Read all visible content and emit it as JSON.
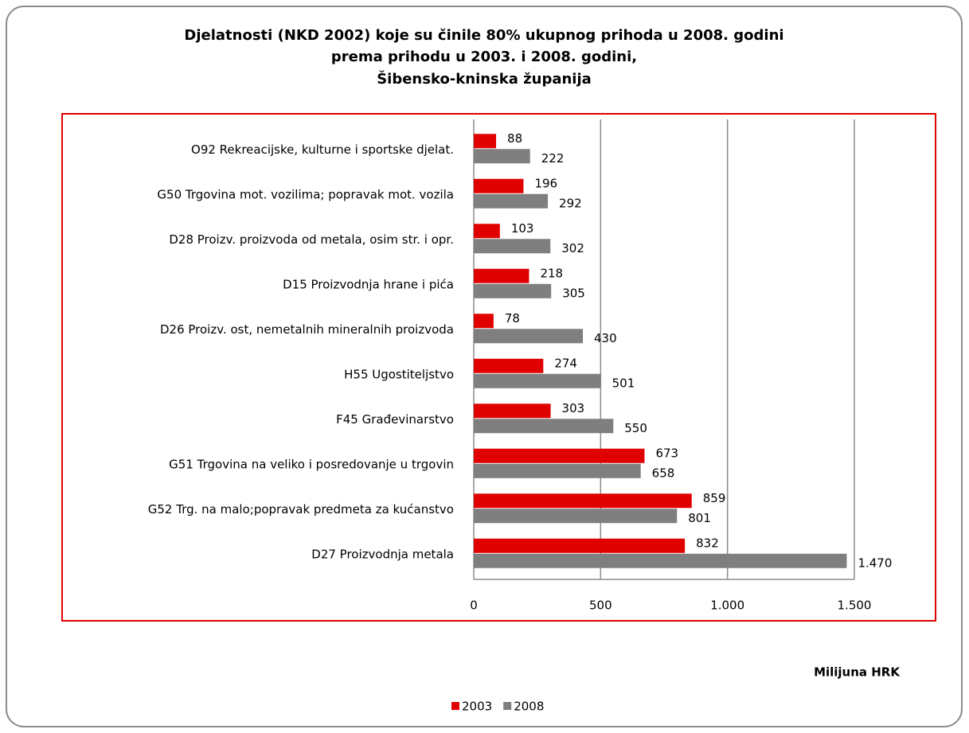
{
  "chart_data": {
    "type": "bar",
    "orientation": "horizontal",
    "title": [
      "Djelatnosti (NKD 2002) koje su činile 80% ukupnog prihoda u 2008. godini",
      "prema prihodu u 2003. i 2008. godini,",
      "Šibensko-kninska županija"
    ],
    "categories": [
      "O92 Rekreacijske, kulturne i sportske djelat.",
      "G50 Trgovina mot. vozilima; popravak mot. vozila",
      "D28 Proizv. proizvoda od metala, osim str. i opr.",
      "D15 Proizvodnja hrane i pića",
      "D26 Proizv. ost, nemetalnih mineralnih proizvoda",
      "H55 Ugostiteljstvo",
      "F45 Građevinarstvo",
      "G51 Trgovina na veliko i posredovanje u trgovin",
      "G52 Trg. na malo;popravak predmeta za kućanstvo",
      "D27 Proizvodnja metala"
    ],
    "series": [
      {
        "name": "2003",
        "color": "#e00000",
        "values": [
          88,
          196,
          103,
          218,
          78,
          274,
          303,
          673,
          859,
          832
        ]
      },
      {
        "name": "2008",
        "color": "#7f7f7f",
        "values": [
          222,
          292,
          302,
          305,
          430,
          501,
          550,
          658,
          801,
          1470
        ],
        "value_labels": [
          "222",
          "292",
          "302",
          "305",
          "430",
          "501",
          "550",
          "658",
          "801",
          "1.470"
        ]
      }
    ],
    "xlim": [
      0,
      1500
    ],
    "xticks": [
      0,
      500,
      {
        "value": 1000,
        "label": "1.000"
      },
      {
        "value": 1500,
        "label": "1.500"
      }
    ],
    "xlabel": "Milijuna HRK",
    "grid": true,
    "legend": "bottom"
  }
}
